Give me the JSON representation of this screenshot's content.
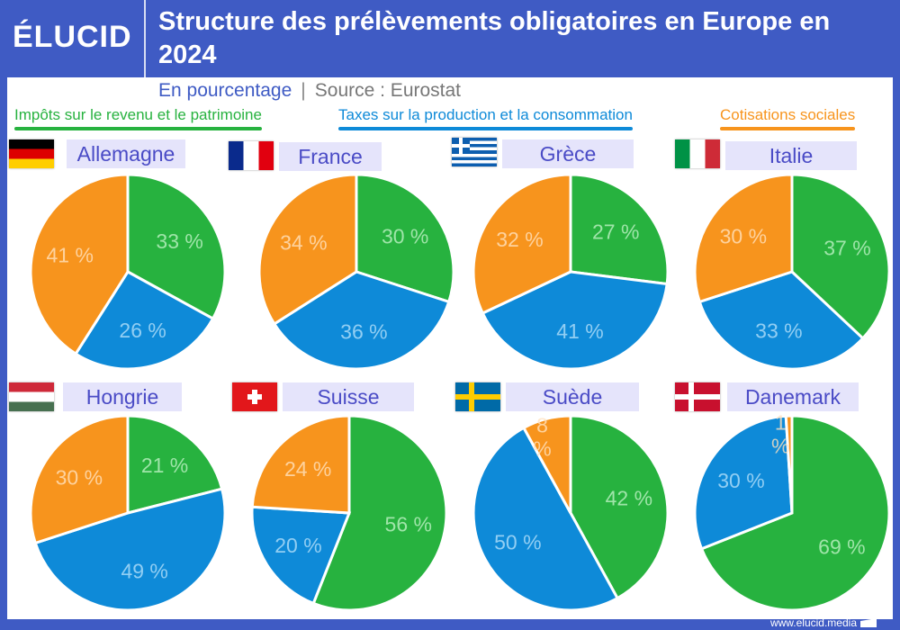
{
  "header": {
    "logo": "ÉLUCID",
    "title": "Structure des prélèvements obligatoires en Europe en 2024"
  },
  "subtitle": {
    "unit": "En pourcentage",
    "separator": "|",
    "source": "Source : Eurostat"
  },
  "footer": {
    "url": "www.elucid.media"
  },
  "chart_data": {
    "type": "pie",
    "title": "Structure des prélèvements obligatoires en Europe en 2024",
    "subtitle": "En pourcentage",
    "legend": [
      {
        "name": "Impôts sur le revenu et le patrimoine",
        "color": "#27b23f"
      },
      {
        "name": "Taxes sur la production et la consommation",
        "color": "#0e8ad8"
      },
      {
        "name": "Cotisations sociales",
        "color": "#f7941d"
      }
    ],
    "legend_placement": "top",
    "pies": [
      {
        "country": "Allemagne",
        "flag": "germany",
        "values": [
          33,
          26,
          41
        ]
      },
      {
        "country": "France",
        "flag": "france",
        "values": [
          30,
          36,
          34
        ]
      },
      {
        "country": "Grèce",
        "flag": "greece",
        "values": [
          27,
          41,
          32
        ]
      },
      {
        "country": "Italie",
        "flag": "italy",
        "values": [
          37,
          33,
          30
        ]
      },
      {
        "country": "Hongrie",
        "flag": "hungary",
        "values": [
          21,
          49,
          30
        ]
      },
      {
        "country": "Suisse",
        "flag": "switzerland",
        "values": [
          56,
          20,
          24
        ]
      },
      {
        "country": "Suède",
        "flag": "sweden",
        "values": [
          42,
          50,
          8
        ]
      },
      {
        "country": "Danemark",
        "flag": "denmark",
        "values": [
          69,
          30,
          1
        ]
      }
    ],
    "value_suffix": " %"
  }
}
